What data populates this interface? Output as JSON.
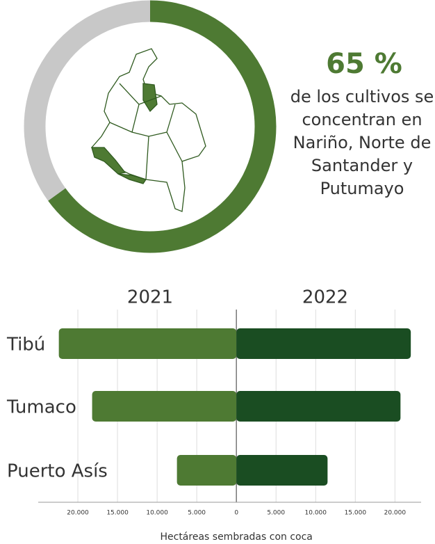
{
  "chart_data": [
    {
      "type": "donut",
      "values": [
        65,
        35
      ],
      "value_labels": [
        "65 %",
        null
      ],
      "colors": [
        "#4e7a33",
        "#c8c8c8"
      ],
      "note": "de los cultivos se concentran en Nariño, Norte de Santander y Putumayo"
    },
    {
      "type": "butterfly",
      "categories": [
        "Tibú",
        "Tumaco",
        "Puerto Asís"
      ],
      "series": [
        {
          "name": "2021",
          "color": "#4e7a33",
          "values": [
            22400,
            18200,
            7500
          ]
        },
        {
          "name": "2022",
          "color": "#1a4d22",
          "values": [
            22000,
            20700,
            11500
          ]
        }
      ],
      "xlim": [
        -25000,
        23300
      ],
      "xticks": [
        {
          "value": -20000,
          "label": "20.000"
        },
        {
          "value": -15000,
          "label": "15.000"
        },
        {
          "value": -10000,
          "label": "10.000"
        },
        {
          "value": -5000,
          "label": "5.000"
        },
        0,
        {
          "value": 5000,
          "label": "5.000"
        },
        {
          "value": 10000,
          "label": "10.000"
        },
        {
          "value": 15000,
          "label": "15.000"
        },
        {
          "value": 20000,
          "label": "20.000"
        }
      ],
      "xlabel": "Hectáreas sembradas con coca",
      "grid": true
    }
  ]
}
